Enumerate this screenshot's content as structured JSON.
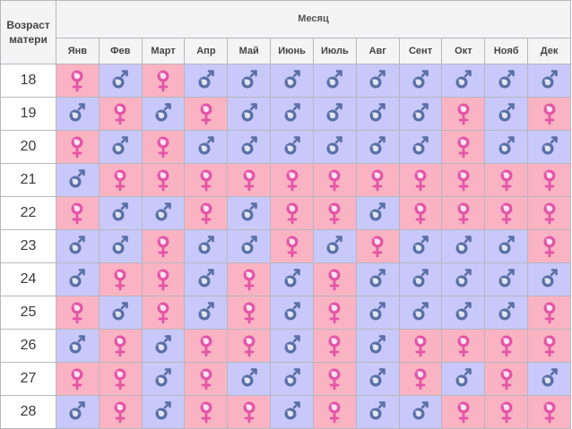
{
  "header": {
    "corner_label": "Возраст матери",
    "month_title": "Месяц",
    "months": [
      "Янв",
      "Фев",
      "Март",
      "Апр",
      "Май",
      "Июнь",
      "Июль",
      "Авг",
      "Сент",
      "Окт",
      "Нояб",
      "Дек"
    ]
  },
  "legend_colors": {
    "boy": "#c8c8fa",
    "girl": "#f9b3c3",
    "boy_symbol": "#5a6fa5",
    "girl_symbol": "#e455a6"
  },
  "rows": [
    {
      "age": "18",
      "cells": [
        "girl",
        "boy",
        "girl",
        "boy",
        "boy",
        "boy",
        "boy",
        "boy",
        "boy",
        "boy",
        "boy",
        "boy"
      ]
    },
    {
      "age": "19",
      "cells": [
        "boy",
        "girl",
        "boy",
        "girl",
        "boy",
        "boy",
        "boy",
        "boy",
        "boy",
        "girl",
        "boy",
        "girl"
      ]
    },
    {
      "age": "20",
      "cells": [
        "girl",
        "boy",
        "girl",
        "boy",
        "boy",
        "boy",
        "boy",
        "boy",
        "boy",
        "girl",
        "boy",
        "boy"
      ]
    },
    {
      "age": "21",
      "cells": [
        "boy",
        "girl",
        "girl",
        "girl",
        "girl",
        "girl",
        "girl",
        "girl",
        "girl",
        "girl",
        "girl",
        "girl"
      ]
    },
    {
      "age": "22",
      "cells": [
        "girl",
        "boy",
        "boy",
        "girl",
        "boy",
        "girl",
        "girl",
        "boy",
        "girl",
        "girl",
        "girl",
        "girl"
      ]
    },
    {
      "age": "23",
      "cells": [
        "boy",
        "boy",
        "girl",
        "boy",
        "boy",
        "girl",
        "boy",
        "girl",
        "boy",
        "boy",
        "boy",
        "girl"
      ]
    },
    {
      "age": "24",
      "cells": [
        "boy",
        "girl",
        "girl",
        "boy",
        "girl",
        "boy",
        "girl",
        "boy",
        "boy",
        "boy",
        "boy",
        "boy"
      ]
    },
    {
      "age": "25",
      "cells": [
        "girl",
        "boy",
        "girl",
        "boy",
        "girl",
        "boy",
        "girl",
        "boy",
        "boy",
        "boy",
        "boy",
        "girl"
      ]
    },
    {
      "age": "26",
      "cells": [
        "boy",
        "girl",
        "boy",
        "girl",
        "girl",
        "boy",
        "girl",
        "boy",
        "girl",
        "girl",
        "girl",
        "girl"
      ]
    },
    {
      "age": "27",
      "cells": [
        "girl",
        "girl",
        "boy",
        "girl",
        "boy",
        "boy",
        "girl",
        "boy",
        "girl",
        "boy",
        "girl",
        "boy"
      ]
    },
    {
      "age": "28",
      "cells": [
        "boy",
        "girl",
        "boy",
        "girl",
        "girl",
        "boy",
        "girl",
        "boy",
        "boy",
        "girl",
        "girl",
        "girl"
      ]
    }
  ]
}
